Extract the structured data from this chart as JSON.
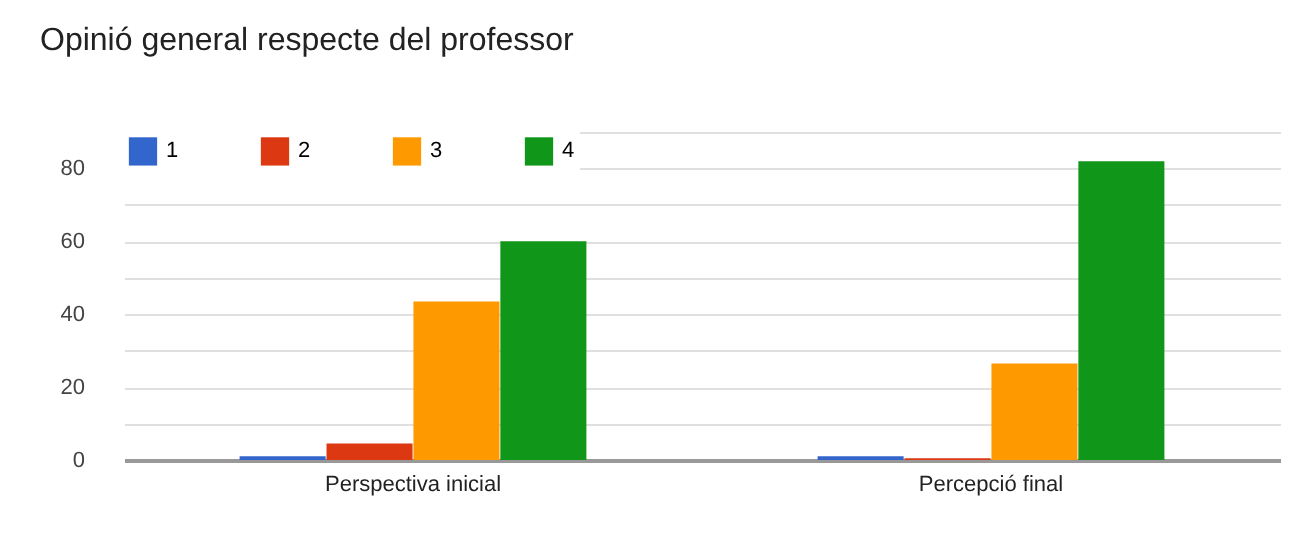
{
  "chart_data": {
    "type": "bar",
    "title": "Opinió general respecte del professor",
    "categories": [
      "Perspectiva inicial",
      "Percepció final"
    ],
    "series": [
      {
        "name": "1",
        "color": "#3366cc",
        "values": [
          1,
          1
        ]
      },
      {
        "name": "2",
        "color": "#dc3912",
        "values": [
          4.5,
          0.5
        ]
      },
      {
        "name": "3",
        "color": "#ff9900",
        "values": [
          43.5,
          26.5
        ]
      },
      {
        "name": "4",
        "color": "#109618",
        "values": [
          60,
          82
        ]
      }
    ],
    "ylim": [
      0,
      90
    ],
    "yticks": [
      0,
      {
        "value": 10,
        "label": null
      },
      20,
      {
        "value": 30,
        "label": null
      },
      40,
      {
        "value": 50,
        "label": null
      },
      60,
      {
        "value": 70,
        "label": null
      },
      80,
      {
        "value": 90,
        "label": null
      }
    ],
    "grid": true,
    "legend": "top left"
  }
}
